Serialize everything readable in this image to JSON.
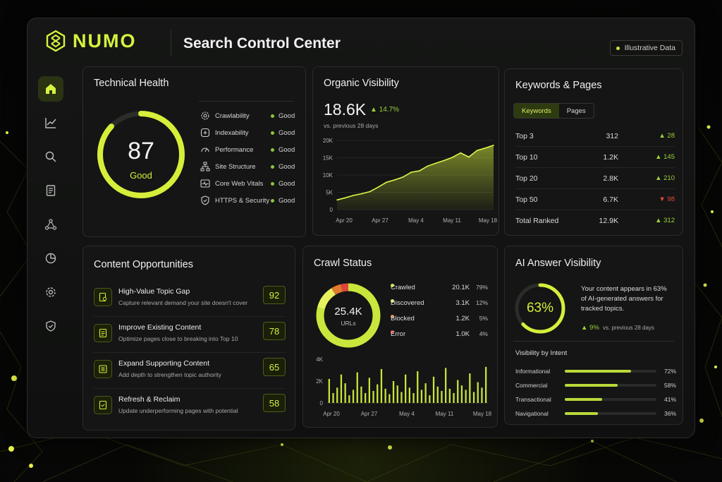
{
  "app": {
    "brand": "NUMO",
    "title": "Search Control Center",
    "badge": "Illustrative Data",
    "accent": "#d6f23c"
  },
  "sidebar": {
    "items": [
      {
        "icon": "home-icon",
        "active": true
      },
      {
        "icon": "chart-line-icon",
        "active": false
      },
      {
        "icon": "search-icon",
        "active": false
      },
      {
        "icon": "document-icon",
        "active": false
      },
      {
        "icon": "network-icon",
        "active": false
      },
      {
        "icon": "pie-chart-icon",
        "active": false
      },
      {
        "icon": "gear-icon",
        "active": false
      },
      {
        "icon": "shield-icon",
        "active": false
      }
    ]
  },
  "technical_health": {
    "title": "Technical Health",
    "score": "87",
    "score_label": "Good",
    "score_fraction": 0.87,
    "metrics": [
      {
        "label": "Crawlability",
        "status": "Good",
        "icon": "gear-icon"
      },
      {
        "label": "Indexability",
        "status": "Good",
        "icon": "index-icon"
      },
      {
        "label": "Performance",
        "status": "Good",
        "icon": "speed-icon"
      },
      {
        "label": "Site Structure",
        "status": "Good",
        "icon": "structure-icon"
      },
      {
        "label": "Core Web Vitals",
        "status": "Good",
        "icon": "vitals-icon"
      },
      {
        "label": "HTTPS & Security",
        "status": "Good",
        "icon": "shield-icon"
      }
    ]
  },
  "organic_visibility": {
    "title": "Organic Visibility",
    "value": "18.6K",
    "delta": "14.7%",
    "comparison": "vs. previous 28 days"
  },
  "chart_data": [
    {
      "type": "area",
      "x_ticks": [
        "Apr 20",
        "Apr 27",
        "May 4",
        "May 11",
        "May 18"
      ],
      "y_ticks": [
        "0",
        "5K",
        "10K",
        "15K",
        "20K"
      ],
      "ylim": [
        0,
        20000
      ],
      "values": [
        2800,
        3400,
        4100,
        4600,
        5200,
        6500,
        7900,
        8600,
        9400,
        10800,
        11200,
        12600,
        13400,
        14200,
        15100,
        16400,
        15200,
        17100,
        17800,
        18600
      ]
    },
    {
      "type": "bar",
      "x_ticks": [
        "Apr 20",
        "Apr 27",
        "May 4",
        "May 11",
        "May 18"
      ],
      "y_ticks": [
        "0",
        "2K",
        "4K"
      ],
      "ylim": [
        0,
        4000
      ],
      "values": [
        2200,
        900,
        1400,
        2600,
        1800,
        700,
        1200,
        2800,
        1500,
        900,
        2300,
        1100,
        1700,
        3100,
        1300,
        800,
        2000,
        1600,
        1000,
        2600,
        1400,
        900,
        2900,
        1200,
        1800,
        700,
        2400,
        1500,
        1100,
        3200,
        1300,
        900,
        2100,
        1600,
        1200,
        2700,
        1000,
        1900,
        1400,
        3300
      ]
    }
  ],
  "keywords": {
    "title": "Keywords & Pages",
    "tabs": [
      "Keywords",
      "Pages"
    ],
    "rows": [
      {
        "label": "Top 3",
        "value": "312",
        "delta": "▲ 28",
        "trend": "up"
      },
      {
        "label": "Top 10",
        "value": "1.2K",
        "delta": "▲ 145",
        "trend": "up"
      },
      {
        "label": "Top 20",
        "value": "2.8K",
        "delta": "▲ 210",
        "trend": "up"
      },
      {
        "label": "Top 50",
        "value": "6.7K",
        "delta": "▼ 98",
        "trend": "down"
      },
      {
        "label": "Total Ranked",
        "value": "12.9K",
        "delta": "▲ 312",
        "trend": "up"
      }
    ]
  },
  "content_opportunities": {
    "title": "Content Opportunities",
    "items": [
      {
        "title": "High-Value Topic Gap",
        "subtitle": "Capture relevant demand your site doesn't cover",
        "score": "92"
      },
      {
        "title": "Improve Existing Content",
        "subtitle": "Optimize pages close to breaking into Top 10",
        "score": "78"
      },
      {
        "title": "Expand Supporting Content",
        "subtitle": "Add depth to strengthen topic authority",
        "score": "65"
      },
      {
        "title": "Refresh & Reclaim",
        "subtitle": "Update underperforming pages with potential",
        "score": "58"
      }
    ]
  },
  "crawl_status": {
    "title": "Crawl Status",
    "total": "25.4K",
    "total_label": "URLs",
    "rows": [
      {
        "label": "Crawled",
        "value": "20.1K",
        "pct": "79%",
        "color": "#c9e63c",
        "fraction": 0.79
      },
      {
        "label": "Discovered",
        "value": "3.1K",
        "pct": "12%",
        "color": "#e8f060",
        "fraction": 0.12
      },
      {
        "label": "Blocked",
        "value": "1.2K",
        "pct": "5%",
        "color": "#e07a2e",
        "fraction": 0.05
      },
      {
        "label": "Error",
        "value": "1.0K",
        "pct": "4%",
        "color": "#e0443a",
        "fraction": 0.04
      }
    ]
  },
  "ai_visibility": {
    "title": "AI Answer Visibility",
    "percent": "63%",
    "fraction": 0.63,
    "description": "Your content appears in 63% of AI-generated answers for tracked topics.",
    "delta": "▲ 9%",
    "comparison": "vs. previous 28 days",
    "intent_title": "Visibility by Intent",
    "intents": [
      {
        "label": "Informational",
        "pct": "72%",
        "fraction": 0.72
      },
      {
        "label": "Commercial",
        "pct": "58%",
        "fraction": 0.58
      },
      {
        "label": "Transactional",
        "pct": "41%",
        "fraction": 0.41
      },
      {
        "label": "Navigational",
        "pct": "36%",
        "fraction": 0.36
      }
    ]
  }
}
